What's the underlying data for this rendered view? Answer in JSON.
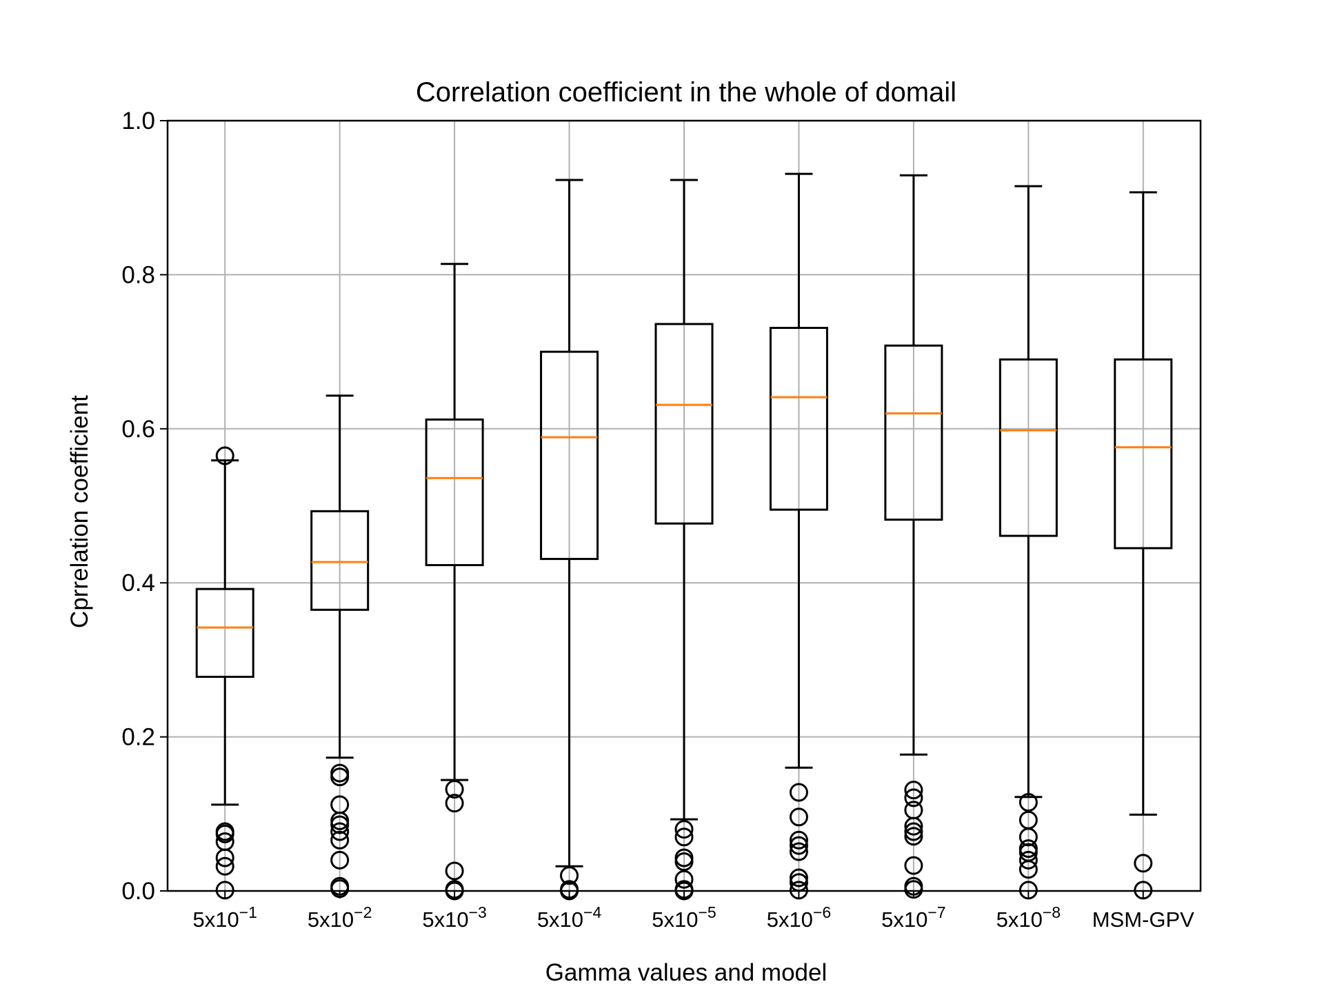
{
  "chart_data": {
    "type": "boxplot",
    "title": "Correlation coefficient in the whole of domail",
    "xlabel": "Gamma values and model",
    "ylabel": "Cprrelation coefficient",
    "ylim": [
      0.0,
      1.0
    ],
    "yticks": [
      "0.0",
      "0.2",
      "0.4",
      "0.6",
      "0.8",
      "1.0"
    ],
    "grid": true,
    "categories": [
      {
        "base": "5x10",
        "exp": "−1"
      },
      {
        "base": "5x10",
        "exp": "−2"
      },
      {
        "base": "5x10",
        "exp": "−3"
      },
      {
        "base": "5x10",
        "exp": "−4"
      },
      {
        "base": "5x10",
        "exp": "−5"
      },
      {
        "base": "5x10",
        "exp": "−6"
      },
      {
        "base": "5x10",
        "exp": "−7"
      },
      {
        "base": "5x10",
        "exp": "−8"
      },
      {
        "base": "MSM-GPV",
        "exp": ""
      }
    ],
    "boxes": [
      {
        "whisker_low": 0.112,
        "q1": 0.278,
        "median": 0.342,
        "q3": 0.392,
        "whisker_high": 0.559,
        "outliers": [
          0.565,
          0.077,
          0.074,
          0.064,
          0.043,
          0.032,
          0.001
        ]
      },
      {
        "whisker_low": 0.173,
        "q1": 0.365,
        "median": 0.427,
        "q3": 0.493,
        "whisker_high": 0.643,
        "outliers": [
          0.153,
          0.148,
          0.112,
          0.091,
          0.086,
          0.077,
          0.066,
          0.04,
          0.006,
          0.003
        ]
      },
      {
        "whisker_low": 0.144,
        "q1": 0.423,
        "median": 0.536,
        "q3": 0.612,
        "whisker_high": 0.814,
        "outliers": [
          0.132,
          0.114,
          0.026,
          0.002,
          0.0
        ]
      },
      {
        "whisker_low": 0.032,
        "q1": 0.431,
        "median": 0.589,
        "q3": 0.7,
        "whisker_high": 0.923,
        "outliers": [
          0.02,
          0.002,
          0.0
        ]
      },
      {
        "whisker_low": 0.093,
        "q1": 0.477,
        "median": 0.631,
        "q3": 0.736,
        "whisker_high": 0.923,
        "outliers": [
          0.08,
          0.07,
          0.043,
          0.038,
          0.015,
          0.002,
          0.0
        ]
      },
      {
        "whisker_low": 0.16,
        "q1": 0.495,
        "median": 0.641,
        "q3": 0.731,
        "whisker_high": 0.931,
        "outliers": [
          0.128,
          0.096,
          0.066,
          0.059,
          0.051,
          0.017,
          0.011,
          0.001
        ]
      },
      {
        "whisker_low": 0.177,
        "q1": 0.482,
        "median": 0.62,
        "q3": 0.708,
        "whisker_high": 0.929,
        "outliers": [
          0.131,
          0.121,
          0.105,
          0.084,
          0.077,
          0.071,
          0.033,
          0.006,
          0.002
        ]
      },
      {
        "whisker_low": 0.122,
        "q1": 0.461,
        "median": 0.598,
        "q3": 0.69,
        "whisker_high": 0.915,
        "outliers": [
          0.115,
          0.092,
          0.07,
          0.055,
          0.05,
          0.04,
          0.028,
          0.001
        ]
      },
      {
        "whisker_low": 0.099,
        "q1": 0.445,
        "median": 0.576,
        "q3": 0.69,
        "whisker_high": 0.907,
        "outliers": [
          0.036,
          0.001
        ]
      }
    ],
    "colors": {
      "box": "#000000",
      "median": "#ff7f0e",
      "grid": "#b0b0b0"
    }
  }
}
